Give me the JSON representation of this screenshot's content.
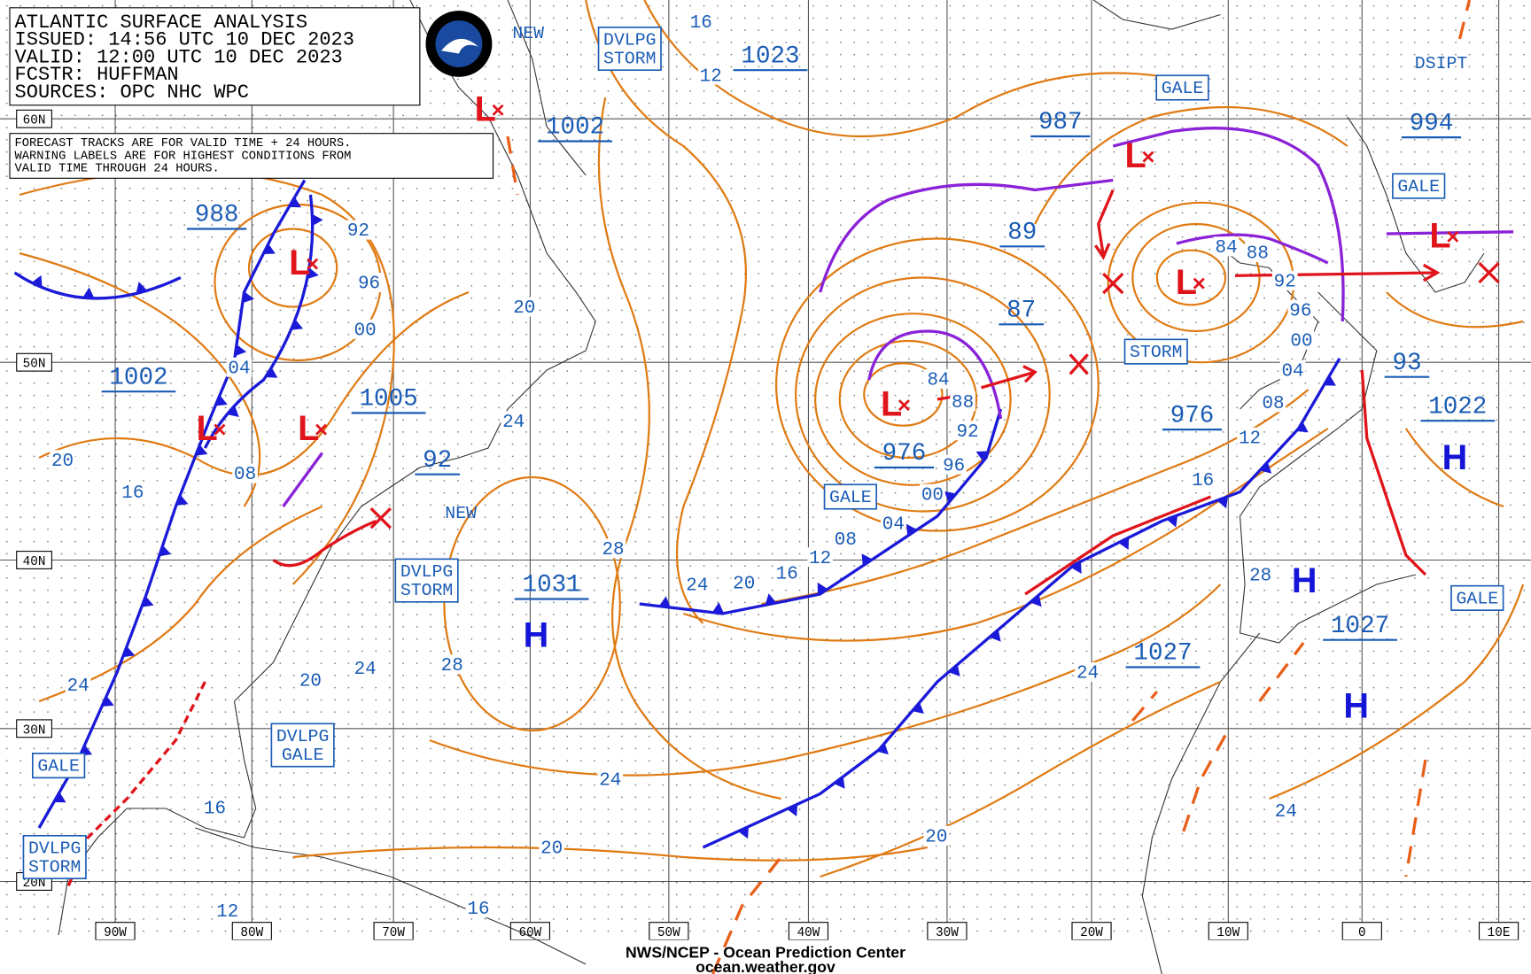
{
  "header": {
    "lines": [
      "ATLANTIC SURFACE ANALYSIS",
      "ISSUED: 14:56 UTC 10 DEC 2023",
      "VALID:  12:00 UTC 10 DEC 2023",
      "FCSTR:  HUFFMAN",
      "SOURCES: OPC NHC WPC"
    ]
  },
  "note": {
    "lines": [
      "FORECAST TRACKS ARE FOR VALID TIME + 24 HOURS.",
      "WARNING LABELS ARE FOR HIGHEST CONDITIONS FROM",
      "VALID TIME THROUGH 24 HOURS."
    ]
  },
  "lat_labels": [
    "60N",
    "50N",
    "40N",
    "30N",
    "20N"
  ],
  "lon_labels": [
    "90W",
    "80W",
    "70W",
    "60W",
    "50W",
    "40W",
    "30W",
    "20W",
    "10W",
    "0",
    "10E"
  ],
  "pressure_labels": [
    "1002",
    "1023",
    "988",
    "1002",
    "1005",
    "92",
    "1031",
    "987",
    "89",
    "87",
    "976",
    "976",
    "994",
    "93",
    "1022",
    "1027",
    "1027"
  ],
  "isobar_labels": [
    "16",
    "12",
    "92",
    "96",
    "00",
    "04",
    "20",
    "24",
    "20",
    "16",
    "08",
    "28",
    "24",
    "20",
    "16",
    "12",
    "08",
    "04",
    "00",
    "96",
    "92",
    "88",
    "84",
    "84",
    "88",
    "92",
    "96",
    "00",
    "04",
    "08",
    "12",
    "16",
    "28",
    "24",
    "24",
    "28",
    "20",
    "24",
    "16",
    "24",
    "20",
    "20",
    "24",
    "12",
    "16"
  ],
  "warnings": [
    [
      "GALE"
    ],
    [
      "GALE"
    ],
    [
      "STORM"
    ],
    [
      "GALE"
    ],
    [
      "DVLPG",
      "STORM"
    ],
    [
      "DVLPG",
      "STORM"
    ],
    [
      "DVLPG",
      "GALE"
    ],
    [
      "GALE"
    ],
    [
      "DVLPG",
      "STORM"
    ],
    [
      "GALE"
    ]
  ],
  "plain_labels": [
    "DSIPT",
    "NEW",
    "NEW"
  ],
  "low_centers": [
    "L",
    "L",
    "L",
    "L",
    "L",
    "L",
    "L",
    "L"
  ],
  "high_centers": [
    "H",
    "H",
    "H",
    "H"
  ],
  "footer": [
    "NWS/NCEP - Ocean Prediction Center",
    "ocean.weather.gov"
  ]
}
